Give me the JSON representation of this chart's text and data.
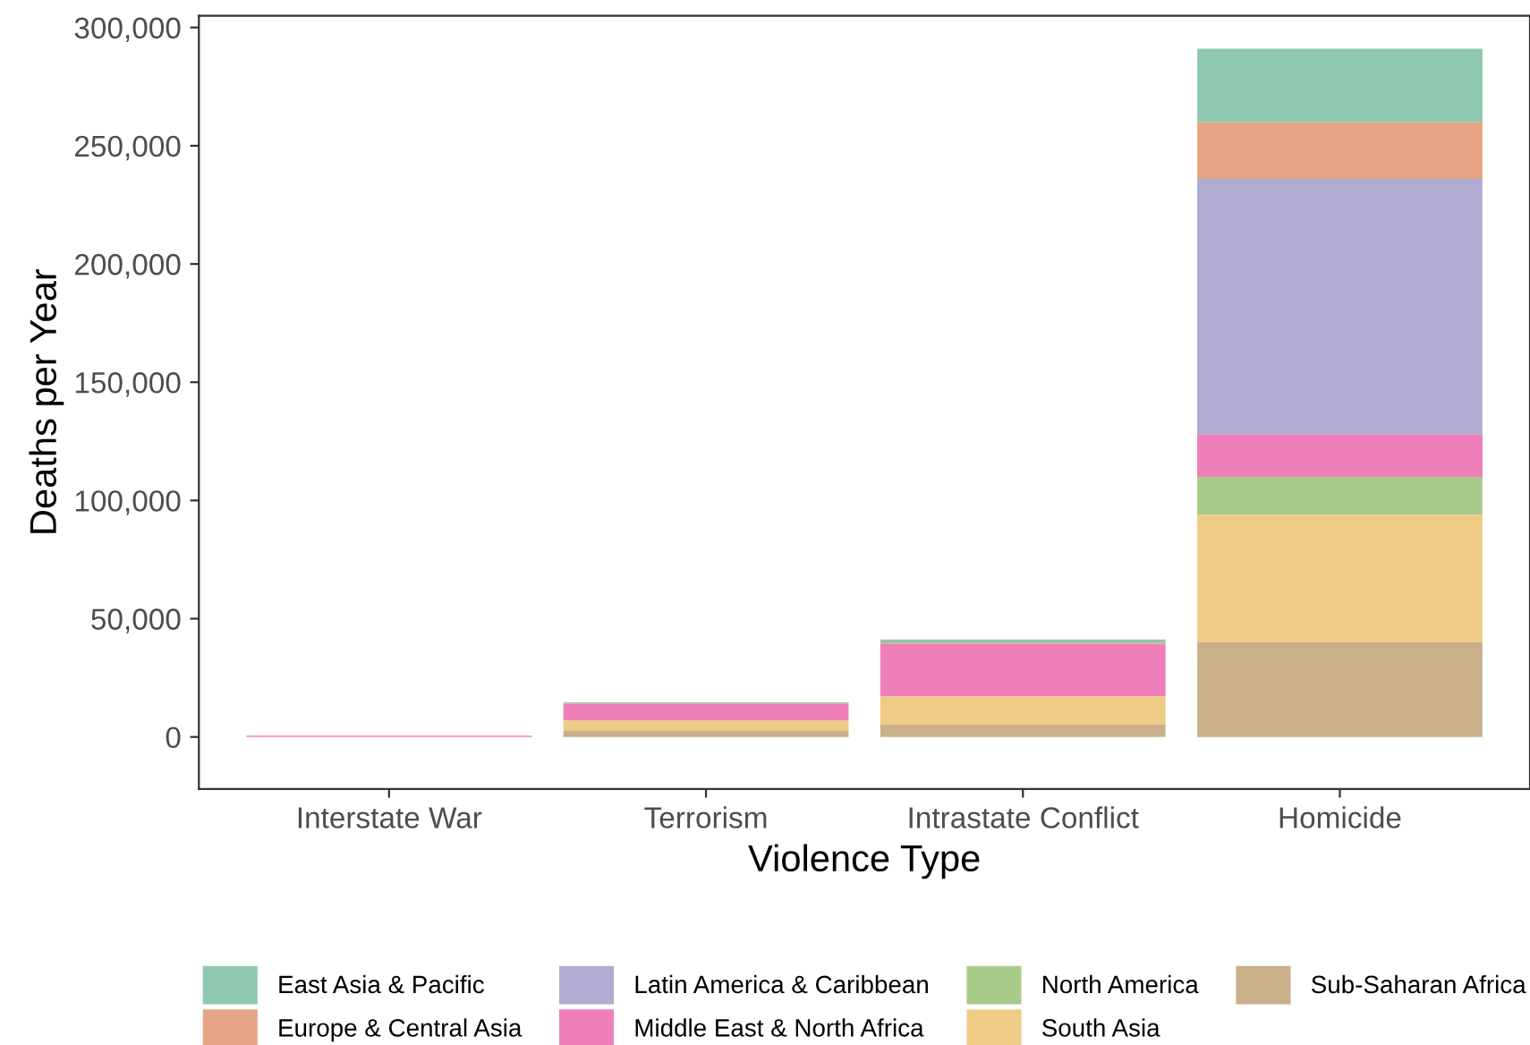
{
  "chart_data": {
    "type": "bar",
    "stacked": true,
    "xlabel": "Violence Type",
    "ylabel": "Deaths per Year",
    "categories": [
      "Interstate War",
      "Terrorism",
      "Intrastate Conflict",
      "Homicide"
    ],
    "series": [
      {
        "name": "Sub-Saharan Africa",
        "color": "#c9b08b",
        "values": [
          0,
          2800,
          5200,
          40000
        ]
      },
      {
        "name": "South Asia",
        "color": "#efcc86",
        "values": [
          0,
          4200,
          12000,
          54000
        ]
      },
      {
        "name": "North America",
        "color": "#a9cb8a",
        "values": [
          0,
          0,
          0,
          16000
        ]
      },
      {
        "name": "Middle East & North Africa",
        "color": "#ee7fb9",
        "values": [
          500,
          6900,
          22000,
          18000
        ]
      },
      {
        "name": "Latin America & Caribbean",
        "color": "#b0acd1",
        "values": [
          0,
          0,
          300,
          108000
        ]
      },
      {
        "name": "Europe & Central Asia",
        "color": "#e5a584",
        "values": [
          0,
          300,
          500,
          24000
        ]
      },
      {
        "name": "East Asia & Pacific",
        "color": "#8ec8b0",
        "values": [
          0,
          400,
          1200,
          31000
        ]
      }
    ],
    "ylim": [
      -22000,
      305000
    ],
    "yticks": [
      {
        "value": 0,
        "label": "0"
      },
      {
        "value": 50000,
        "label": "50,000"
      },
      {
        "value": 100000,
        "label": "100,000"
      },
      {
        "value": 150000,
        "label": "150,000"
      },
      {
        "value": 200000,
        "label": "200,000"
      },
      {
        "value": 250000,
        "label": "250,000"
      },
      {
        "value": 300000,
        "label": "300,000"
      }
    ],
    "grid": false,
    "legend": "bottom"
  }
}
